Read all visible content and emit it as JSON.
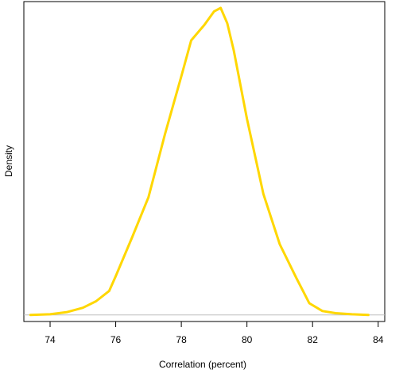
{
  "chart_data": {
    "type": "line",
    "title": "",
    "xlabel": "Correlation (percent)",
    "ylabel": "Density",
    "xlim": [
      73.2,
      84.2
    ],
    "ylim": [
      -0.006,
      0.286
    ],
    "x_ticks": [
      74,
      76,
      78,
      80,
      82,
      84
    ],
    "x_tick_labels": [
      "74",
      "76",
      "78",
      "80",
      "82",
      "84"
    ],
    "y_ticks": [],
    "grid": false,
    "legend": "none",
    "baseline": 0,
    "series": [
      {
        "color": "#FFD700",
        "baseline_color": "#BEBEBE",
        "x": [
          73.4,
          74.0,
          74.5,
          75.0,
          75.4,
          75.8,
          76.0,
          76.5,
          77.0,
          77.5,
          78.0,
          78.3,
          78.7,
          79.0,
          79.2,
          79.4,
          79.6,
          80.0,
          80.5,
          81.0,
          81.5,
          81.9,
          82.3,
          82.7,
          83.2,
          83.7
        ],
        "y": [
          0.0,
          0.0006,
          0.0025,
          0.0065,
          0.0125,
          0.0218,
          0.0354,
          0.0708,
          0.1075,
          0.1649,
          0.2178,
          0.2506,
          0.2646,
          0.2771,
          0.2802,
          0.2662,
          0.2413,
          0.1789,
          0.1105,
          0.0646,
          0.034,
          0.0107,
          0.0036,
          0.0016,
          0.0006,
          0.0
        ]
      }
    ]
  }
}
